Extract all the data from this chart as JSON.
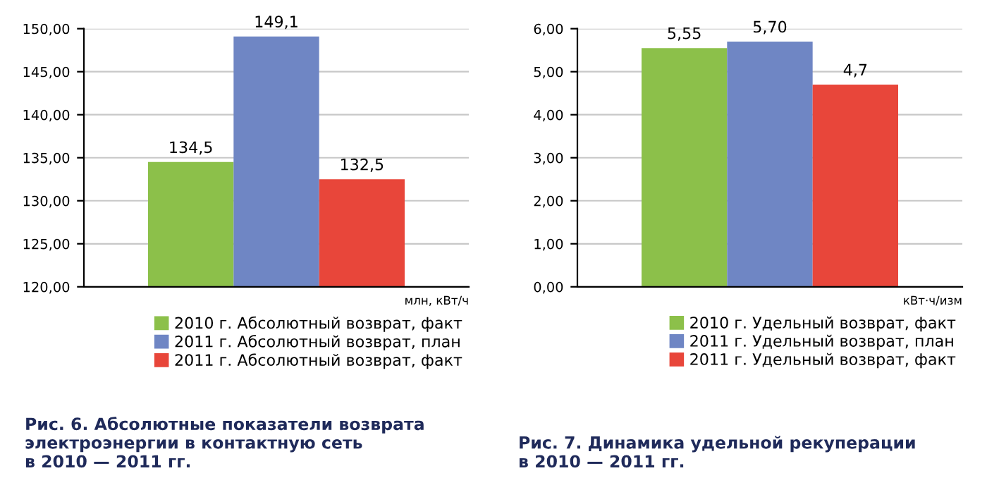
{
  "chart_data": [
    {
      "type": "bar",
      "title": "Рис. 6. Абсолютные показатели возврата\nэлектроэнергии в контактную сеть\nв 2010 — 2011 гг.",
      "xlabel": "млн, кВт/ч",
      "categories": [
        null
      ],
      "series": [
        {
          "name": "2010 г. Абсолютный возврат, факт",
          "color": "#8cc04a",
          "values": [
            134.5
          ],
          "value_labels": [
            "134,5"
          ]
        },
        {
          "name": "2011 г. Абсолютный возврат, план",
          "color": "#6f86c4",
          "values": [
            149.1
          ],
          "value_labels": [
            "149,1"
          ]
        },
        {
          "name": "2011 г. Абсолютный возврат, факт",
          "color": "#e8463a",
          "values": [
            132.5
          ],
          "value_labels": [
            "132,5"
          ]
        }
      ],
      "ylim": [
        120,
        150
      ],
      "yticks": [
        {
          "value": 120,
          "label": "120,00"
        },
        {
          "value": 125,
          "label": "125,00"
        },
        {
          "value": 130,
          "label": "130,00"
        },
        {
          "value": 135,
          "label": "135,00"
        },
        {
          "value": 140,
          "label": "140,00"
        },
        {
          "value": 145,
          "label": "145,00"
        },
        {
          "value": 150,
          "label": "150,00"
        }
      ],
      "grid": "y",
      "legend": "bottom right"
    },
    {
      "type": "bar",
      "title": "Рис. 7. Динамика удельной рекуперации\nв 2010 — 2011 гг.",
      "xlabel": "кВт·ч/изм",
      "categories": [
        null
      ],
      "series": [
        {
          "name": "2010 г. Удельный возврат, факт",
          "color": "#8cc04a",
          "values": [
            5.55
          ],
          "value_labels": [
            "5,55"
          ]
        },
        {
          "name": "2011 г. Удельный возврат, план",
          "color": "#6f86c4",
          "values": [
            5.7
          ],
          "value_labels": [
            "5,70"
          ]
        },
        {
          "name": "2011 г. Удельный возврат, факт",
          "color": "#e8463a",
          "values": [
            4.7
          ],
          "value_labels": [
            "4,7"
          ]
        }
      ],
      "ylim": [
        0,
        6
      ],
      "yticks": [
        {
          "value": 0,
          "label": "0,00"
        },
        {
          "value": 1,
          "label": "1,00"
        },
        {
          "value": 2,
          "label": "2,00"
        },
        {
          "value": 3,
          "label": "3,00"
        },
        {
          "value": 4,
          "label": "4,00"
        },
        {
          "value": 5,
          "label": "5,00"
        },
        {
          "value": 6,
          "label": "6,00"
        }
      ],
      "grid": "y",
      "legend": "bottom right"
    }
  ]
}
